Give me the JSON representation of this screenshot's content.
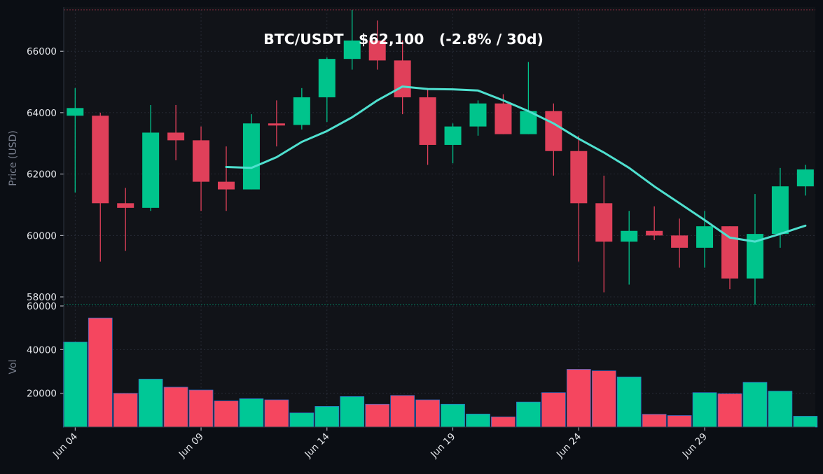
{
  "chart_data": {
    "type": "candlestick",
    "title": "BTC/USDT   $62,100   (-2.8% / 30d)",
    "colors": {
      "background": "#0b0e14",
      "panel": "#111318",
      "up": "#00c48c",
      "down": "#e0405a",
      "vol_up": "#00c896",
      "vol_down": "#f5465f",
      "ma": "#4fe0cf",
      "grid": "#2a2f3a"
    },
    "price_panel": {
      "ylabel": "Price (USD)",
      "yticks": [
        "58000",
        "60000",
        "62000",
        "64000",
        "66000"
      ],
      "ylim": [
        57750,
        67350
      ],
      "grid": true
    },
    "volume_panel": {
      "ylabel": "Vol",
      "yticks": [
        "20000",
        "40000",
        "60000"
      ],
      "ylim": [
        4500,
        60000
      ],
      "grid": true
    },
    "x_ticks": [
      "Jun 04",
      "Jun 09",
      "Jun 14",
      "Jun 19",
      "Jun 24",
      "Jun 29"
    ],
    "candles": [
      {
        "date": "Jun 04",
        "open": 63900,
        "high": 64800,
        "low": 61400,
        "close": 64150,
        "volume": 43500
      },
      {
        "date": "Jun 05",
        "open": 63900,
        "high": 64000,
        "low": 59150,
        "close": 61050,
        "volume": 54500
      },
      {
        "date": "Jun 06",
        "open": 61050,
        "high": 61550,
        "low": 59500,
        "close": 60900,
        "volume": 20000
      },
      {
        "date": "Jun 07",
        "open": 60900,
        "high": 64250,
        "low": 60800,
        "close": 63350,
        "volume": 26500
      },
      {
        "date": "Jun 08",
        "open": 63350,
        "high": 64250,
        "low": 62450,
        "close": 63100,
        "volume": 22800
      },
      {
        "date": "Jun 09",
        "open": 63100,
        "high": 63550,
        "low": 60800,
        "close": 61750,
        "volume": 21500
      },
      {
        "date": "Jun 10",
        "open": 61750,
        "high": 62900,
        "low": 60800,
        "close": 61500,
        "volume": 16500
      },
      {
        "date": "Jun 11",
        "open": 61500,
        "high": 63950,
        "low": 61500,
        "close": 63650,
        "volume": 17500
      },
      {
        "date": "Jun 12",
        "open": 63650,
        "high": 64400,
        "low": 62900,
        "close": 63600,
        "volume": 17000
      },
      {
        "date": "Jun 13",
        "open": 63600,
        "high": 64800,
        "low": 63450,
        "close": 64500,
        "volume": 11000
      },
      {
        "date": "Jun 14",
        "open": 64500,
        "high": 65800,
        "low": 63700,
        "close": 65750,
        "volume": 14000
      },
      {
        "date": "Jun 15",
        "open": 65750,
        "high": 67350,
        "low": 65400,
        "close": 66350,
        "volume": 18500
      },
      {
        "date": "Jun 16",
        "open": 66350,
        "high": 67000,
        "low": 65400,
        "close": 65700,
        "volume": 15000
      },
      {
        "date": "Jun 17",
        "open": 65700,
        "high": 66350,
        "low": 63950,
        "close": 64500,
        "volume": 19000
      },
      {
        "date": "Jun 18",
        "open": 64500,
        "high": 64800,
        "low": 62300,
        "close": 62950,
        "volume": 17000
      },
      {
        "date": "Jun 19",
        "open": 62950,
        "high": 63650,
        "low": 62350,
        "close": 63550,
        "volume": 15000
      },
      {
        "date": "Jun 20",
        "open": 63550,
        "high": 64400,
        "low": 63250,
        "close": 64300,
        "volume": 10500
      },
      {
        "date": "Jun 21",
        "open": 64300,
        "high": 64600,
        "low": 63300,
        "close": 63300,
        "volume": 9200
      },
      {
        "date": "Jun 22",
        "open": 63300,
        "high": 65650,
        "low": 63300,
        "close": 64050,
        "volume": 16000
      },
      {
        "date": "Jun 23",
        "open": 64050,
        "high": 64300,
        "low": 61950,
        "close": 62750,
        "volume": 20300
      },
      {
        "date": "Jun 24",
        "open": 62750,
        "high": 63250,
        "low": 59150,
        "close": 61050,
        "volume": 31000
      },
      {
        "date": "Jun 25",
        "open": 61050,
        "high": 61950,
        "low": 58150,
        "close": 59800,
        "volume": 30300
      },
      {
        "date": "Jun 26",
        "open": 59800,
        "high": 60800,
        "low": 58400,
        "close": 60150,
        "volume": 27500
      },
      {
        "date": "Jun 27",
        "open": 60150,
        "high": 60950,
        "low": 59850,
        "close": 60000,
        "volume": 10400
      },
      {
        "date": "Jun 28",
        "open": 60000,
        "high": 60550,
        "low": 58950,
        "close": 59600,
        "volume": 9800
      },
      {
        "date": "Jun 29",
        "open": 59600,
        "high": 60800,
        "low": 58950,
        "close": 60300,
        "volume": 20300
      },
      {
        "date": "Jun 30",
        "open": 60300,
        "high": 60300,
        "low": 58250,
        "close": 58600,
        "volume": 19800
      },
      {
        "date": "Jul 01",
        "open": 58600,
        "high": 61350,
        "low": 57750,
        "close": 60050,
        "volume": 25000
      },
      {
        "date": "Jul 02",
        "open": 60050,
        "high": 62200,
        "low": 59600,
        "close": 61600,
        "volume": 21000
      },
      {
        "date": "Jul 03",
        "open": 61600,
        "high": 62300,
        "low": 61300,
        "close": 62150,
        "volume": 9500
      }
    ],
    "moving_average": [
      {
        "date": "Jun 10",
        "value": 62230
      },
      {
        "date": "Jun 11",
        "value": 62200
      },
      {
        "date": "Jun 12",
        "value": 62550
      },
      {
        "date": "Jun 13",
        "value": 63050
      },
      {
        "date": "Jun 14",
        "value": 63400
      },
      {
        "date": "Jun 15",
        "value": 63850
      },
      {
        "date": "Jun 16",
        "value": 64400
      },
      {
        "date": "Jun 17",
        "value": 64850
      },
      {
        "date": "Jun 18",
        "value": 64770
      },
      {
        "date": "Jun 19",
        "value": 64760
      },
      {
        "date": "Jun 20",
        "value": 64720
      },
      {
        "date": "Jun 21",
        "value": 64400
      },
      {
        "date": "Jun 22",
        "value": 64050
      },
      {
        "date": "Jun 23",
        "value": 63650
      },
      {
        "date": "Jun 24",
        "value": 63150
      },
      {
        "date": "Jun 25",
        "value": 62700
      },
      {
        "date": "Jun 26",
        "value": 62200
      },
      {
        "date": "Jun 27",
        "value": 61600
      },
      {
        "date": "Jun 28",
        "value": 61050
      },
      {
        "date": "Jun 29",
        "value": 60500
      },
      {
        "date": "Jun 30",
        "value": 59930
      },
      {
        "date": "Jul 01",
        "value": 59800
      },
      {
        "date": "Jul 02",
        "value": 60050
      },
      {
        "date": "Jul 03",
        "value": 60320
      }
    ]
  }
}
